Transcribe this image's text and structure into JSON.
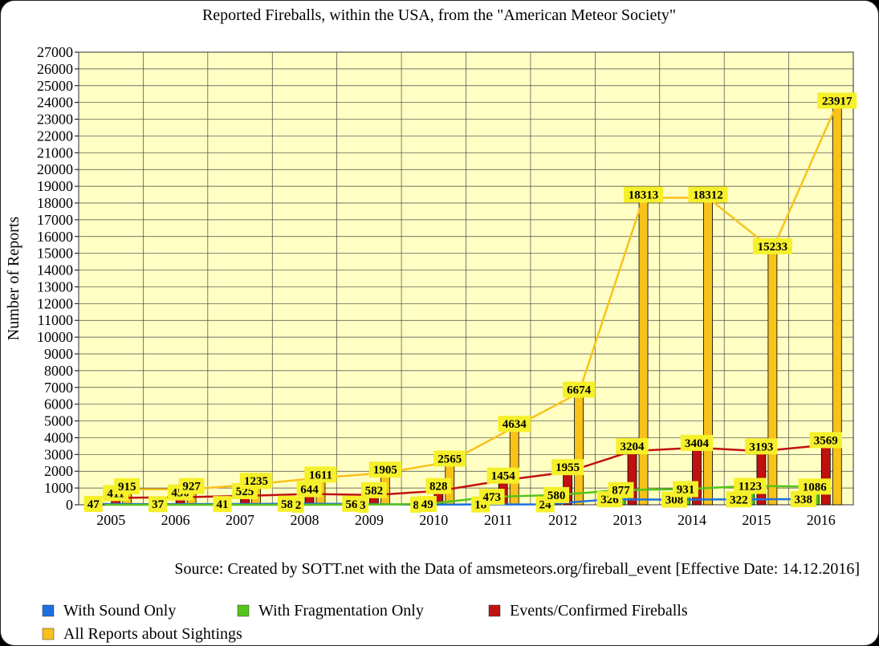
{
  "chart_data": {
    "type": "bar",
    "title": "Reported Fireballs, within the USA, from the \"American Meteor Society\"",
    "ylabel": "Number of Reports",
    "xlabel": "",
    "ylim": [
      0,
      27000
    ],
    "ytick_step": 1000,
    "grid": true,
    "categories": [
      "2005",
      "2006",
      "2007",
      "2008",
      "2009",
      "2010",
      "2011",
      "2012",
      "2013",
      "2014",
      "2015",
      "2016"
    ],
    "series": [
      {
        "name": "With Sound Only",
        "color": "#1f6fe0",
        "values": [
          47,
          37,
          41,
          58,
          56,
          8,
          18,
          24,
          326,
          308,
          322,
          338
        ],
        "labels": [
          "47",
          "37",
          "41",
          "58",
          "56",
          "8",
          "18",
          "24",
          "326",
          "308",
          "322",
          "338"
        ]
      },
      {
        "name": "With Fragmentation Only",
        "color": "#55c41a",
        "values": [
          2,
          2,
          2,
          2,
          3,
          49,
          473,
          580,
          877,
          931,
          1123,
          1086
        ],
        "labels": [
          "",
          "",
          "",
          "2",
          "3",
          "49",
          "473",
          "580",
          "877",
          "931",
          "1123",
          "1086"
        ]
      },
      {
        "name": "Events/Confirmed Fireballs",
        "color": "#c01010",
        "values": [
          411,
          450,
          525,
          644,
          582,
          828,
          1454,
          1955,
          3204,
          3404,
          3193,
          3569
        ],
        "labels": [
          "411",
          "450",
          "525",
          "644",
          "582",
          "828",
          "1454",
          "1955",
          "3204",
          "3404",
          "3193",
          "3569"
        ]
      },
      {
        "name": "All Reports about Sightings",
        "color": "#f8c21a",
        "values": [
          915,
          927,
          1235,
          1611,
          1905,
          2565,
          4634,
          6674,
          18313,
          18312,
          15233,
          23917
        ],
        "labels": [
          "915",
          "927",
          "1235",
          "1611",
          "1905",
          "2565",
          "4634",
          "6674",
          "18313",
          "18312",
          "15233",
          "23917"
        ]
      }
    ],
    "label_bg": "#f5f02a",
    "plot_bg": "#ffffc4",
    "source": "Source: Created by SOTT.net with the Data of amsmeteors.org/fireball_event [Effective Date: 14.12.2016]",
    "legend_position": "bottom"
  }
}
